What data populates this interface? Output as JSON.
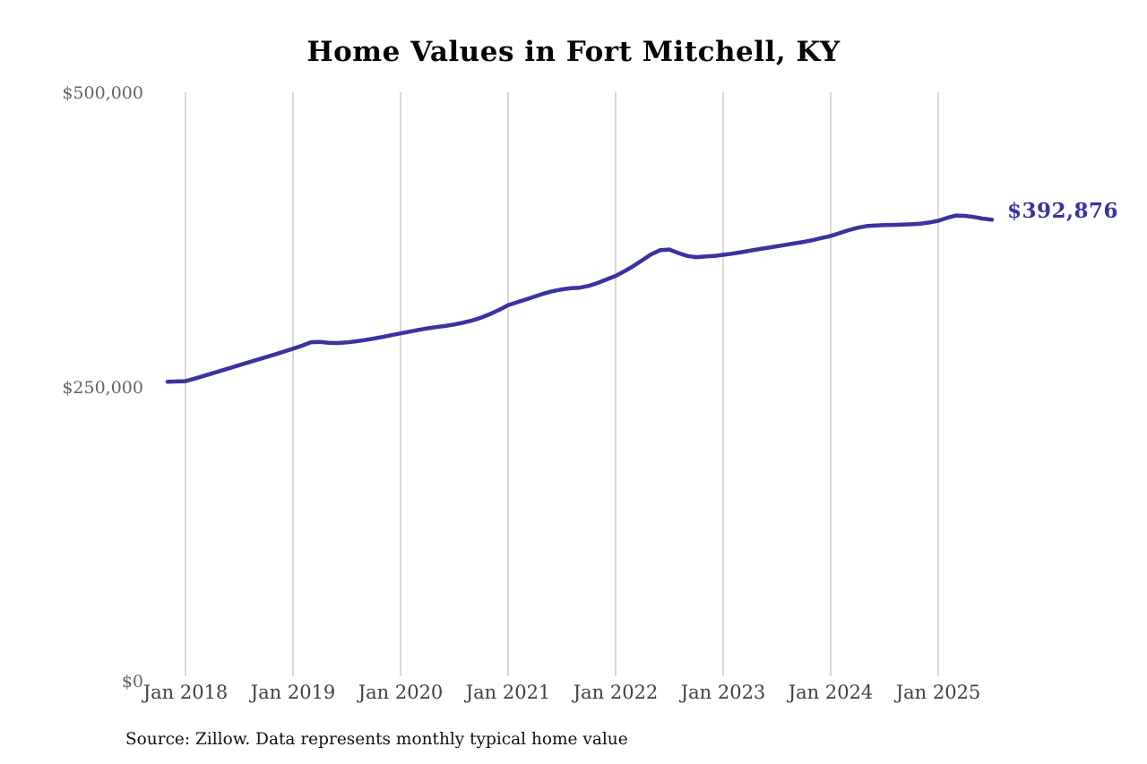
{
  "title": "Home Values in Fort Mitchell, KY",
  "end_label": "$392,876",
  "source_note": "Source: Zillow. Data represents monthly typical home value",
  "colors": {
    "line": "#3a339f",
    "end_label": "#3a339f",
    "gridline": "#c2c2c2",
    "y_tick_text": "#636363",
    "x_tick_text": "#414141",
    "background": "#ffffff"
  },
  "chart_data": {
    "type": "line",
    "title": "Home Values in Fort Mitchell, KY",
    "xlabel": "",
    "ylabel": "",
    "ylim": [
      0,
      500000
    ],
    "grid": "vertical-only",
    "legend": "none",
    "frequency": "monthly",
    "x_start_month": "2017-11",
    "x_end_month": "2025-07",
    "months_before_first_tick": 2,
    "x_tick_labels": [
      "Jan 2018",
      "Jan 2019",
      "Jan 2020",
      "Jan 2021",
      "Jan 2022",
      "Jan 2023",
      "Jan 2024",
      "Jan 2025"
    ],
    "y_tick_labels": [
      "$0",
      "$250,000",
      "$500,000"
    ],
    "y_tick_values": [
      0,
      250000,
      500000
    ],
    "final_value": 392876,
    "series": [
      {
        "name": "Typical home value",
        "values": [
          254800,
          255000,
          255300,
          257400,
          259700,
          262000,
          264300,
          266600,
          268900,
          271200,
          273500,
          275800,
          278100,
          280500,
          283000,
          285500,
          288500,
          288800,
          288000,
          287800,
          288300,
          289200,
          290300,
          291600,
          293000,
          294500,
          296000,
          297500,
          299000,
          300300,
          301400,
          302400,
          303600,
          305200,
          307000,
          309500,
          312500,
          316000,
          320000,
          322500,
          325000,
          327500,
          330000,
          332000,
          333500,
          334500,
          335000,
          336500,
          339000,
          342000,
          345000,
          349000,
          353500,
          358500,
          363500,
          367000,
          367500,
          364500,
          362000,
          361000,
          361500,
          362000,
          363000,
          364000,
          365200,
          366500,
          367800,
          369000,
          370200,
          371500,
          372800,
          374000,
          375500,
          377300,
          379000,
          381500,
          384000,
          386000,
          387500,
          388000,
          388300,
          388500,
          388700,
          389000,
          389500,
          390500,
          392000,
          394500,
          396500,
          396200,
          395200,
          393800,
          392876
        ]
      }
    ]
  }
}
